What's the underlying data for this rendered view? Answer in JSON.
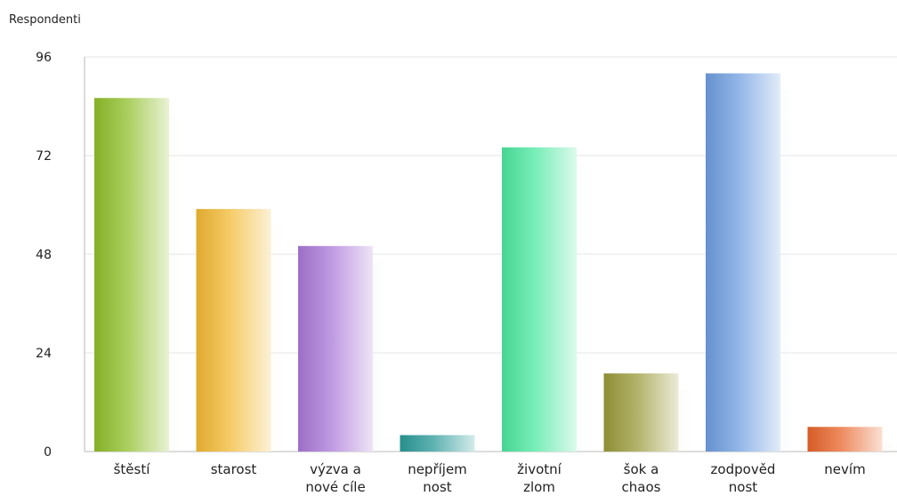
{
  "chart_data": {
    "type": "bar",
    "ylabel": "Respondenti",
    "categories": [
      [
        "štěstí"
      ],
      [
        "starost"
      ],
      [
        "výzva a",
        "nové cíle"
      ],
      [
        "nepříjem",
        "nost"
      ],
      [
        "životní",
        "zlom"
      ],
      [
        "šok a",
        "chaos"
      ],
      [
        "zodpověd",
        "nost"
      ],
      [
        "nevím"
      ]
    ],
    "values": [
      86,
      59,
      50,
      4,
      74,
      19,
      92,
      6
    ],
    "ylim": [
      0,
      96
    ],
    "yticks": [
      0,
      24,
      48,
      72,
      96
    ],
    "grid": true,
    "colors": [
      "#8fbf2a",
      "#f2b933",
      "#a978d8",
      "#2a9a98",
      "#4ce8a0",
      "#9a9a3a",
      "#6f9ee0",
      "#e8642a"
    ]
  }
}
